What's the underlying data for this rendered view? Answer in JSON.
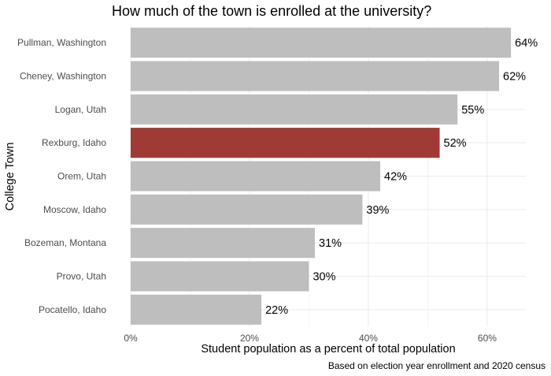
{
  "chart_data": {
    "type": "bar",
    "orientation": "horizontal",
    "title": "How much of the town is enrolled at the university?",
    "xlabel": "Student population as a percent of total population",
    "ylabel": "College Town",
    "caption": "Based on election year enrollment and 2020 census",
    "categories": [
      "Pullman, Washington",
      "Cheney, Washington",
      "Logan, Utah",
      "Rexburg, Idaho",
      "Orem, Utah",
      "Moscow, Idaho",
      "Bozeman, Montana",
      "Provo, Utah",
      "Pocatello, Idaho"
    ],
    "values": [
      64,
      62,
      55,
      52,
      42,
      39,
      31,
      30,
      22
    ],
    "value_labels": [
      "64%",
      "62%",
      "55%",
      "52%",
      "42%",
      "39%",
      "31%",
      "30%",
      "22%"
    ],
    "xlim": [
      0,
      66.5
    ],
    "xticks": [
      0,
      20,
      40,
      60
    ],
    "xtick_labels": [
      "0%",
      "20%",
      "40%",
      "60%"
    ],
    "highlight": "Rexburg, Idaho",
    "colors": {
      "bar": "#bebebe",
      "highlight": "#a03a35",
      "grid": "#ebebeb"
    },
    "grid": true,
    "legend": "none"
  }
}
